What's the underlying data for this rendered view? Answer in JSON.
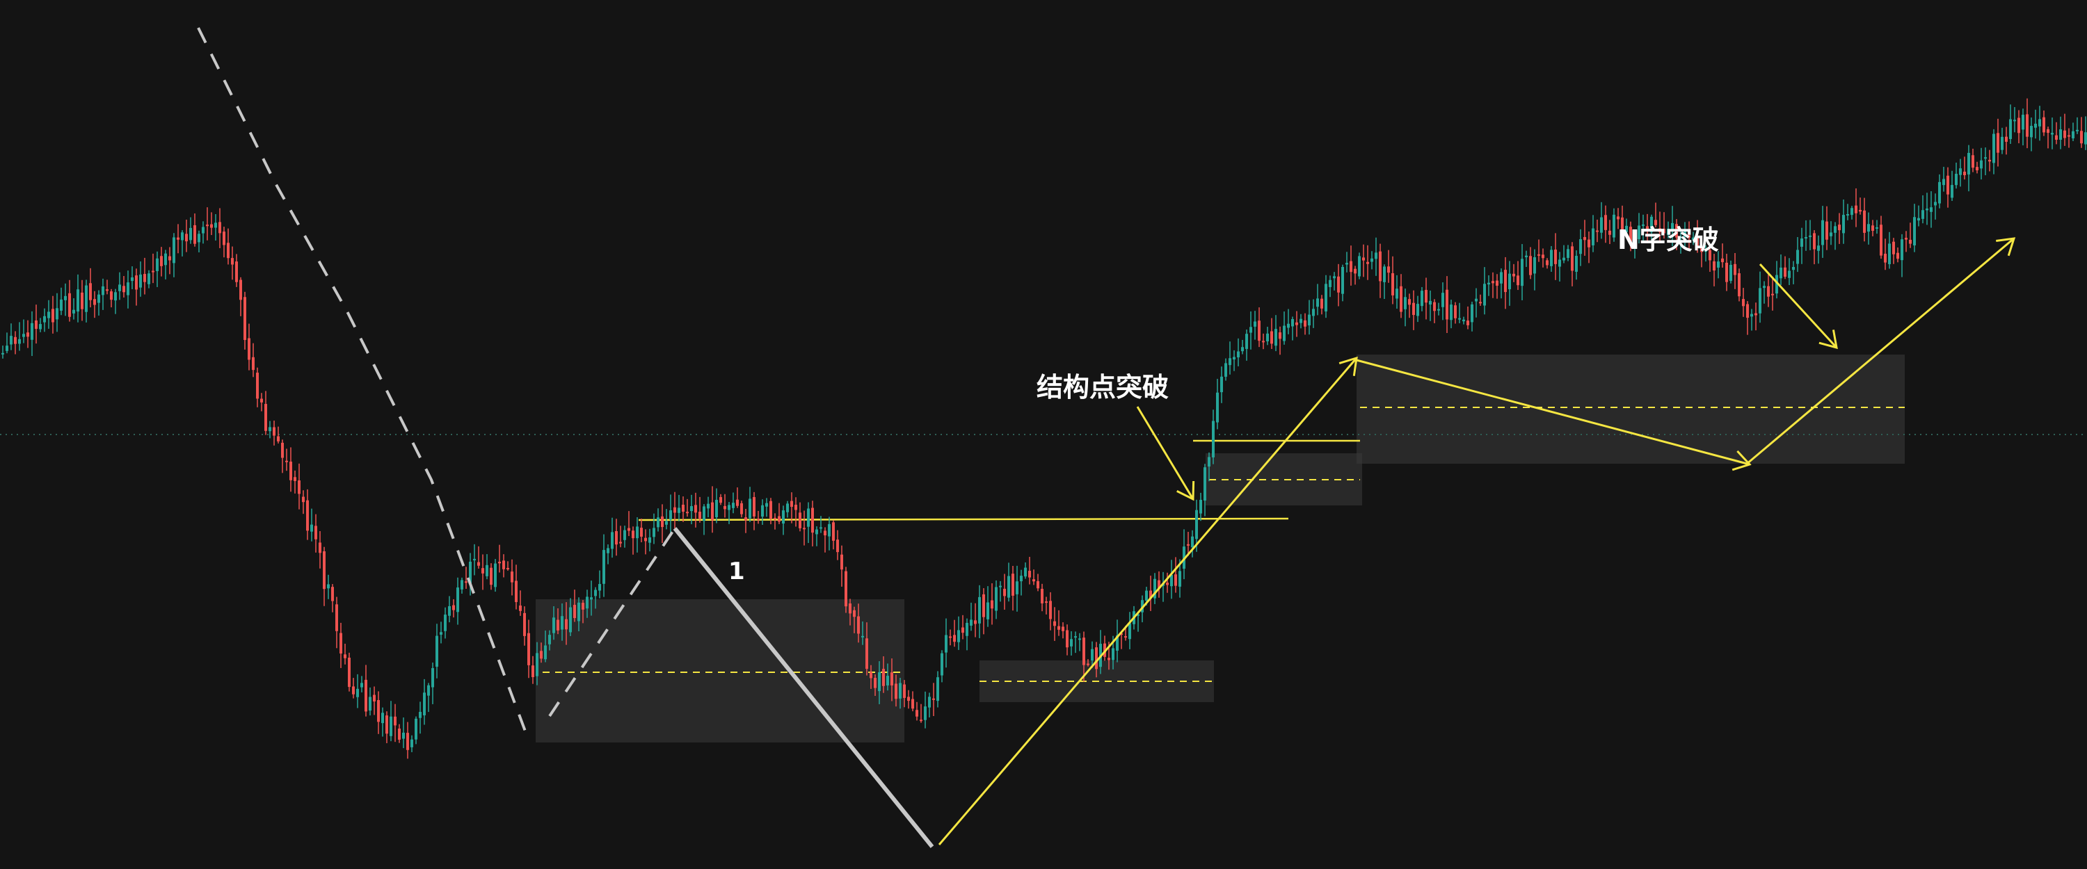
{
  "chart_data": {
    "type": "candlestick",
    "colors": {
      "background": "#141414",
      "up": "#26a69a",
      "down": "#ef5350",
      "annotation": "#f5e642",
      "grey_line": "#c8c8c8",
      "box": "#3a3a3a",
      "reference_dotted": "#2f5f55"
    },
    "ohlc_trend_points": [
      [
        0,
        0.5
      ],
      [
        40,
        0.52
      ],
      [
        110,
        0.55
      ],
      [
        200,
        0.56
      ],
      [
        250,
        0.6
      ],
      [
        290,
        0.61
      ],
      [
        310,
        0.62
      ],
      [
        330,
        0.58
      ],
      [
        350,
        0.52
      ],
      [
        380,
        0.44
      ],
      [
        420,
        0.4
      ],
      [
        460,
        0.32
      ],
      [
        500,
        0.22
      ],
      [
        530,
        0.2
      ],
      [
        560,
        0.18
      ],
      [
        590,
        0.17
      ],
      [
        600,
        0.2
      ],
      [
        640,
        0.28
      ],
      [
        680,
        0.32
      ],
      [
        700,
        0.31
      ],
      [
        730,
        0.33
      ],
      [
        760,
        0.23
      ],
      [
        800,
        0.27
      ],
      [
        840,
        0.29
      ],
      [
        880,
        0.34
      ],
      [
        920,
        0.35
      ],
      [
        970,
        0.36
      ],
      [
        1040,
        0.37
      ],
      [
        1100,
        0.37
      ],
      [
        1160,
        0.36
      ],
      [
        1190,
        0.35
      ],
      [
        1230,
        0.26
      ],
      [
        1260,
        0.22
      ],
      [
        1290,
        0.21
      ],
      [
        1300,
        0.2
      ],
      [
        1330,
        0.19
      ],
      [
        1360,
        0.26
      ],
      [
        1400,
        0.28
      ],
      [
        1440,
        0.3
      ],
      [
        1480,
        0.31
      ],
      [
        1520,
        0.26
      ],
      [
        1570,
        0.24
      ],
      [
        1600,
        0.25
      ],
      [
        1620,
        0.27
      ],
      [
        1660,
        0.3
      ],
      [
        1690,
        0.31
      ],
      [
        1710,
        0.34
      ],
      [
        1730,
        0.4
      ],
      [
        1745,
        0.46
      ],
      [
        1760,
        0.5
      ],
      [
        1800,
        0.52
      ],
      [
        1840,
        0.52
      ],
      [
        1880,
        0.54
      ],
      [
        1910,
        0.56
      ],
      [
        1950,
        0.58
      ],
      [
        1960,
        0.59
      ],
      [
        1990,
        0.57
      ],
      [
        2020,
        0.54
      ],
      [
        2060,
        0.55
      ],
      [
        2100,
        0.53
      ],
      [
        2140,
        0.56
      ],
      [
        2180,
        0.57
      ],
      [
        2220,
        0.59
      ],
      [
        2260,
        0.58
      ],
      [
        2300,
        0.62
      ],
      [
        2340,
        0.6
      ],
      [
        2380,
        0.62
      ],
      [
        2420,
        0.6
      ],
      [
        2460,
        0.58
      ],
      [
        2490,
        0.57
      ],
      [
        2510,
        0.53
      ],
      [
        2540,
        0.56
      ],
      [
        2580,
        0.59
      ],
      [
        2620,
        0.61
      ],
      [
        2660,
        0.62
      ],
      [
        2700,
        0.6
      ],
      [
        2720,
        0.58
      ],
      [
        2740,
        0.6
      ],
      [
        2780,
        0.64
      ],
      [
        2820,
        0.66
      ],
      [
        2860,
        0.68
      ],
      [
        2890,
        0.7
      ],
      [
        2910,
        0.7
      ],
      [
        2950,
        0.69
      ],
      [
        3000,
        0.69
      ]
    ],
    "structure_point_breakout_label": "结构点突破",
    "n_breakout_label": "N字突破",
    "wave_label": "1"
  }
}
